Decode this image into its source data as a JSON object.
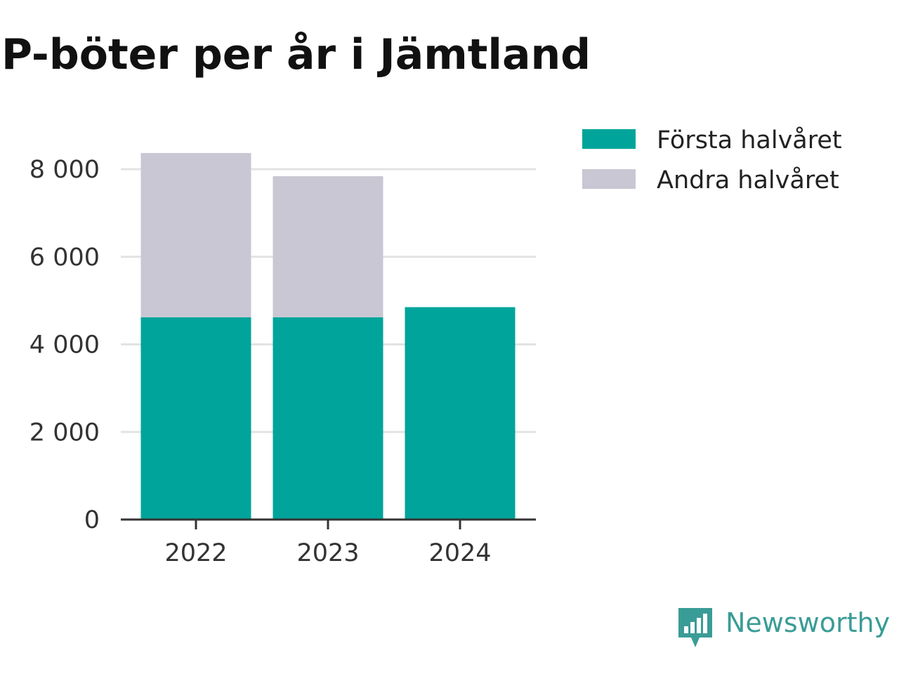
{
  "chart_data": {
    "type": "bar",
    "stacked": true,
    "title": "P-böter per år i Jämtland",
    "categories": [
      "2022",
      "2023",
      "2024"
    ],
    "series": [
      {
        "name": "Första halvåret",
        "color": "#00a49a",
        "values": [
          4620,
          4620,
          4850
        ]
      },
      {
        "name": "Andra halvåret",
        "color": "#c8c7d3",
        "values": [
          3750,
          3220,
          null
        ]
      }
    ],
    "yticks": [
      0,
      2000,
      4000,
      6000,
      8000
    ],
    "ytick_labels": [
      "0",
      "2 000",
      "4 000",
      "6 000",
      "8 000"
    ],
    "ylim": [
      0,
      8000
    ],
    "xlabel": "",
    "ylabel": "",
    "grid": true,
    "legend_position": "top-right"
  },
  "brand": {
    "name": "Newsworthy",
    "icon": "bar-chart-speech-bubble-icon",
    "color": "#3a9c96"
  }
}
